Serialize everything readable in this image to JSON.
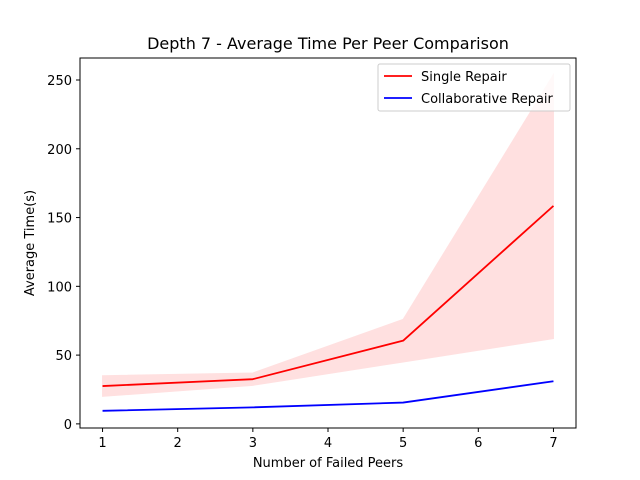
{
  "chart_data": {
    "type": "line",
    "title": "Depth 7 - Average Time Per Peer Comparison",
    "xlabel": "Number of Failed Peers",
    "ylabel": "Average Time(s)",
    "xlim": [
      0.7,
      7.3
    ],
    "ylim": [
      -3,
      266
    ],
    "xticks": [
      1,
      2,
      3,
      4,
      5,
      6,
      7
    ],
    "yticks": [
      0,
      50,
      100,
      150,
      200,
      250
    ],
    "grid": false,
    "legend_position": "top-right",
    "series": [
      {
        "name": "Single Repair",
        "color": "#ff0000",
        "x": [
          1,
          3,
          5,
          7
        ],
        "values": [
          27.5,
          32.5,
          60.5,
          158.5
        ],
        "band_lower": [
          20,
          28,
          45,
          62
        ],
        "band_upper": [
          35,
          37,
          76,
          254
        ],
        "band_color": "#ffe0e0"
      },
      {
        "name": "Collaborative Repair",
        "color": "#0000ff",
        "x": [
          1,
          3,
          5,
          7
        ],
        "values": [
          9.5,
          12,
          15.5,
          31
        ]
      }
    ]
  }
}
